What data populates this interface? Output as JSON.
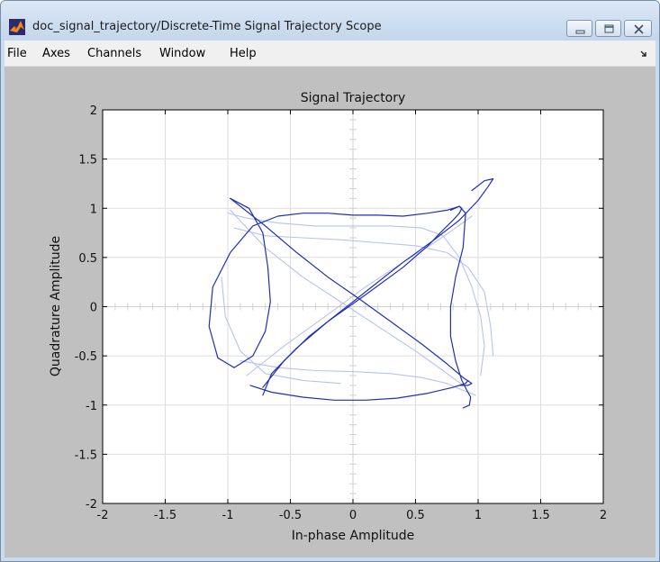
{
  "window": {
    "title": "doc_signal_trajectory/Discrete-Time Signal Trajectory Scope",
    "app_icon": "matlab-logo-icon",
    "buttons": [
      "minimize-icon",
      "maximize-icon",
      "close-icon"
    ]
  },
  "menubar": {
    "items": [
      {
        "label": "File"
      },
      {
        "label": "Axes"
      },
      {
        "label": "Channels"
      },
      {
        "label": "Window"
      },
      {
        "label": "Help"
      }
    ],
    "dock_icon": "dock-arrow-icon"
  },
  "colors": {
    "trace_dark": "#1f2fb8",
    "trace_fade": "#b8c2ef",
    "figure_bg": "#c0c0c0",
    "axes_bg": "#ffffff",
    "grid": "#dddddd"
  },
  "chart_data": {
    "type": "line",
    "title": "Signal Trajectory",
    "xlabel": "In-phase Amplitude",
    "ylabel": "Quadrature Amplitude",
    "xlim": [
      -2,
      2
    ],
    "ylim": [
      -2,
      2
    ],
    "xticks": [
      -2,
      -1.5,
      -1,
      -0.5,
      0,
      0.5,
      1,
      1.5,
      2
    ],
    "yticks": [
      -2,
      -1.5,
      -1,
      -0.5,
      0,
      0.5,
      1,
      1.5,
      2
    ],
    "xtick_labels": [
      "-2",
      "-1.5",
      "-1",
      "-0.5",
      "0",
      "0.5",
      "1",
      "1.5",
      "2"
    ],
    "ytick_labels": [
      "-2",
      "-1.5",
      "-1",
      "-0.5",
      "0",
      "0.5",
      "1",
      "1.5",
      "2"
    ],
    "grid": true,
    "legend": false,
    "series": [
      {
        "style": "recent",
        "x": [
          -0.98,
          -0.83,
          -0.72,
          -0.68,
          -0.66,
          -0.7,
          -0.8,
          -0.95,
          -1.08,
          -1.15,
          -1.12,
          -0.98,
          -0.8,
          -0.6,
          -0.4,
          -0.2,
          0,
          0.2,
          0.4,
          0.6,
          0.75,
          0.85,
          0.9,
          0.88,
          0.82,
          0.78,
          0.78,
          0.82,
          0.87,
          0.91,
          0.94,
          0.93,
          0.88
        ],
        "y": [
          1.1,
          1.0,
          0.75,
          0.4,
          0.05,
          -0.25,
          -0.5,
          -0.62,
          -0.52,
          -0.2,
          0.2,
          0.55,
          0.82,
          0.92,
          0.95,
          0.95,
          0.93,
          0.93,
          0.92,
          0.95,
          0.98,
          1.02,
          0.95,
          0.6,
          0.3,
          0.0,
          -0.3,
          -0.55,
          -0.75,
          -0.85,
          -0.92,
          -1.0,
          -1.03
        ]
      },
      {
        "style": "recent",
        "x": [
          -0.72,
          -0.65,
          -0.45,
          -0.2,
          0.1,
          0.4,
          0.6,
          0.72,
          0.8,
          0.85,
          0.87,
          0.85,
          0.78
        ],
        "y": [
          -0.9,
          -0.68,
          -0.42,
          -0.15,
          0.12,
          0.4,
          0.62,
          0.78,
          0.88,
          0.95,
          1.0,
          1.02,
          0.98
        ]
      },
      {
        "style": "recent",
        "x": [
          -0.98,
          -0.7,
          -0.45,
          -0.2,
          0.05,
          0.3,
          0.55,
          0.75,
          0.88,
          0.95,
          0.92,
          0.85
        ],
        "y": [
          1.1,
          0.82,
          0.55,
          0.3,
          0.08,
          -0.15,
          -0.38,
          -0.58,
          -0.72,
          -0.78,
          -0.8,
          -0.8
        ]
      },
      {
        "style": "recent",
        "x": [
          -0.82,
          -0.65,
          -0.4,
          -0.15,
          0.1,
          0.35,
          0.6,
          0.8,
          0.9,
          0.92
        ],
        "y": [
          -0.8,
          -0.87,
          -0.92,
          -0.95,
          -0.95,
          -0.93,
          -0.88,
          -0.82,
          -0.78,
          -0.75
        ]
      },
      {
        "style": "recent",
        "x": [
          -0.72,
          -0.55,
          -0.35,
          -0.1,
          0.15,
          0.4,
          0.65,
          0.85,
          1.0,
          1.08,
          1.12,
          1.05,
          0.95
        ],
        "y": [
          -0.82,
          -0.55,
          -0.3,
          -0.05,
          0.2,
          0.45,
          0.68,
          0.88,
          1.08,
          1.22,
          1.3,
          1.28,
          1.18
        ]
      },
      {
        "style": "faded",
        "x": [
          -1.0,
          -0.85,
          -0.6,
          -0.3,
          0.0,
          0.3,
          0.55,
          0.72,
          0.85,
          0.95,
          1.02,
          1.05,
          1.02
        ],
        "y": [
          0.95,
          0.9,
          0.85,
          0.82,
          0.82,
          0.82,
          0.8,
          0.72,
          0.5,
          0.2,
          -0.1,
          -0.4,
          -0.7
        ]
      },
      {
        "style": "faded",
        "x": [
          -0.95,
          -0.7,
          -0.4,
          -0.1,
          0.2,
          0.5,
          0.75,
          0.92,
          1.05,
          1.1,
          1.12
        ],
        "y": [
          0.8,
          0.72,
          0.7,
          0.68,
          0.65,
          0.62,
          0.55,
          0.4,
          0.15,
          -0.2,
          -0.5
        ]
      },
      {
        "style": "faded",
        "x": [
          -0.9,
          -0.6,
          -0.3,
          0.0,
          0.3,
          0.55,
          0.75,
          0.88,
          0.98
        ],
        "y": [
          -0.55,
          -0.62,
          -0.65,
          -0.66,
          -0.68,
          -0.72,
          -0.78,
          -0.85,
          -0.9
        ]
      },
      {
        "style": "faded",
        "x": [
          -0.98,
          -0.7,
          -0.4,
          -0.1,
          0.2,
          0.5,
          0.72,
          0.88
        ],
        "y": [
          0.98,
          0.6,
          0.3,
          0.05,
          -0.2,
          -0.45,
          -0.65,
          -0.8
        ]
      },
      {
        "style": "faded",
        "x": [
          -0.85,
          -0.55,
          -0.2,
          0.1,
          0.4,
          0.65,
          0.82,
          0.95
        ],
        "y": [
          -0.7,
          -0.4,
          -0.08,
          0.2,
          0.45,
          0.65,
          0.8,
          0.92
        ]
      },
      {
        "style": "faded",
        "x": [
          -1.05,
          -1.02,
          -0.9,
          -0.7,
          -0.4,
          -0.1
        ],
        "y": [
          0.3,
          -0.1,
          -0.45,
          -0.68,
          -0.75,
          -0.78
        ]
      }
    ]
  }
}
